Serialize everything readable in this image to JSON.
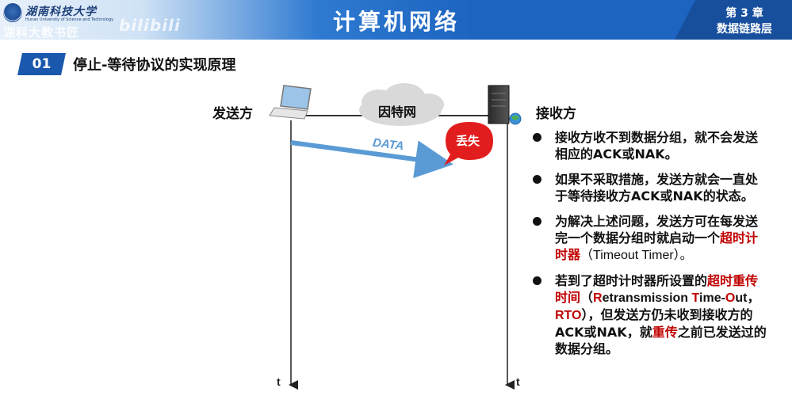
{
  "header": {
    "university_name": "湖南科技大学",
    "university_en": "Hunan University of Science and Technology",
    "watermark": "湖科大教书匠",
    "brand": "bilibili",
    "title": "计算机网络",
    "chapter_line1": "第 3 章",
    "chapter_line2": "数据链路层"
  },
  "section": {
    "number": "01",
    "title": "停止-等待协议的实现原理"
  },
  "diagram": {
    "sender_label": "发送方",
    "receiver_label": "接收方",
    "network_label": "因特网",
    "data_label": "DATA",
    "lost_label": "丢失",
    "time_label_left": "t",
    "time_label_right": "t"
  },
  "bullets": {
    "b1": {
      "text": "接收方收不到数据分组，就不会发送相应的ACK或NAK。"
    },
    "b2": {
      "text": "如果不采取措施，发送方就会一直处于等待接收方ACK或NAK的状态。"
    },
    "b3": {
      "p1": "为解决上述问题，发送方可在每发送完一个数据分组时就启动一个",
      "red1": "超时计时器",
      "p2": "（Timeout Timer）。"
    },
    "b4": {
      "p1": "若到了超时计时器所设置的",
      "red1": "超时重传时间",
      "p2": "（",
      "r": "R",
      "p3": "etransmission ",
      "t": "T",
      "p4": "ime-",
      "o": "O",
      "p5": "ut，",
      "rto": "RTO",
      "p6": "），但发送方仍未收到接收方的ACK或NAK，就",
      "red2": "重传",
      "p7": "之前已发送过的数据分组。"
    }
  },
  "colors": {
    "header_blue": "#1c64c0",
    "accent_red": "#c00000",
    "arrow_blue": "#5b9bd5"
  }
}
